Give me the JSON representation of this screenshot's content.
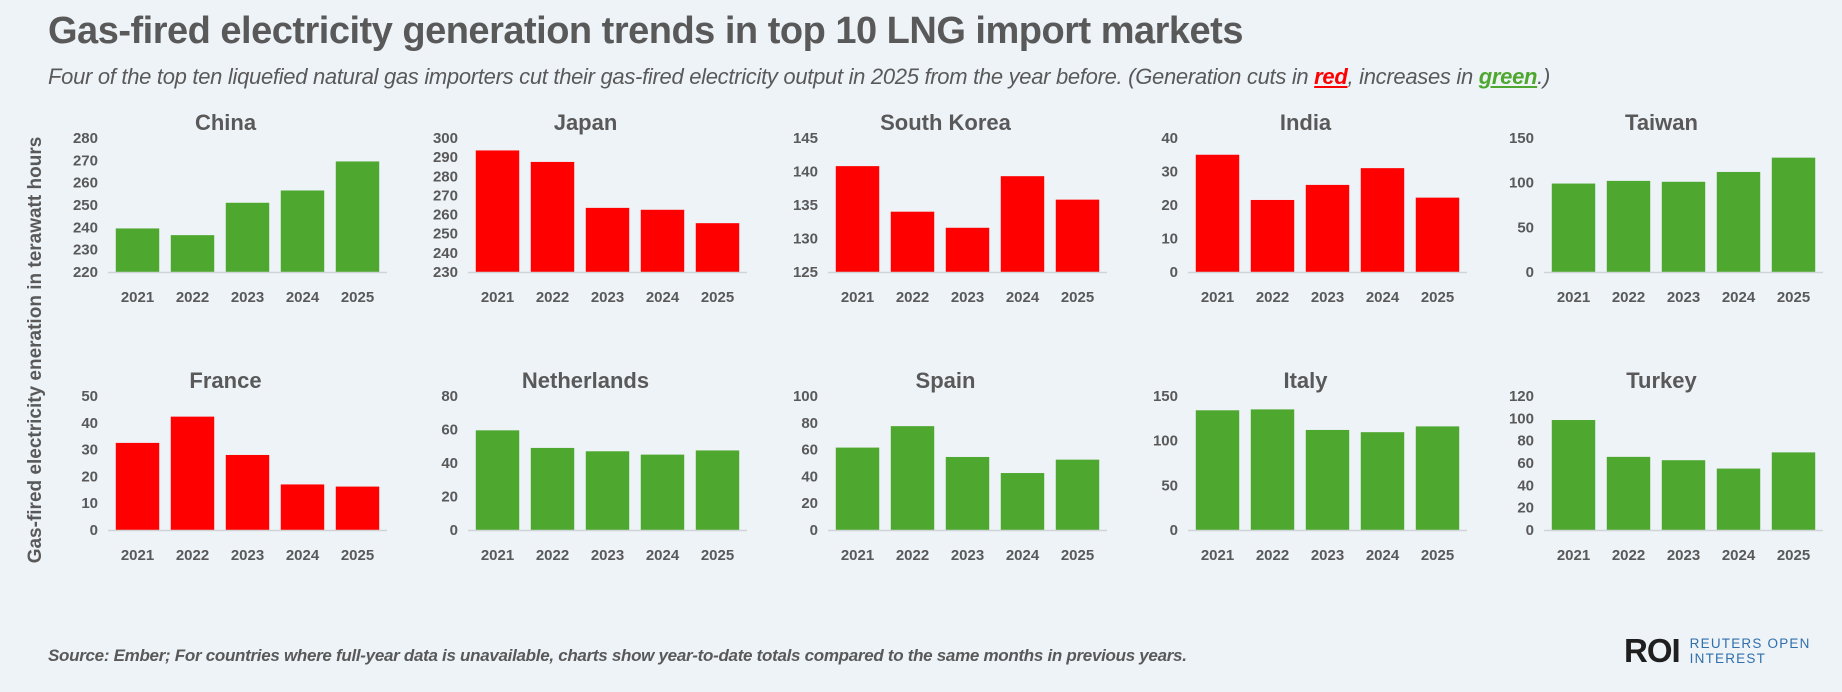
{
  "header": {
    "title": "Gas-fired electricity generation trends in top 10 LNG import markets",
    "subtitle_pre": "Four of the top ten liquefied natural gas importers cut their gas-fired electricity output in 2025 from the year before. (Generation cuts in ",
    "subtitle_red": "red",
    "subtitle_mid": ", increases in ",
    "subtitle_green": "green",
    "subtitle_post": ".)"
  },
  "y_axis_label": "Gas-fired electricity eneration in terawatt hours",
  "footer": {
    "source": "Source:  Ember; For countries where full-year data is unavailable, charts show year-to-date totals compared to the same months in previous years.",
    "logo_mark": "ROI",
    "logo_line1": "REUTERS OPEN",
    "logo_line2": "INTEREST"
  },
  "colors": {
    "cut": "#ff0000",
    "increase": "#4ea72e",
    "text": "#595959",
    "background": "#eef3f8"
  },
  "chart_data": [
    {
      "type": "bar",
      "title": "China",
      "categories": [
        "2021",
        "2022",
        "2023",
        "2024",
        "2025"
      ],
      "values": [
        239.5,
        236.5,
        251,
        256.5,
        269.5
      ],
      "ylim": [
        220,
        280
      ],
      "yticks": [
        220,
        230,
        240,
        250,
        260,
        270,
        280
      ],
      "trend": "increase",
      "ylabel": "Gas-fired electricity eneration in terawatt hours",
      "grid": false
    },
    {
      "type": "bar",
      "title": "Japan",
      "categories": [
        "2021",
        "2022",
        "2023",
        "2024",
        "2025"
      ],
      "values": [
        293.5,
        287.5,
        263.5,
        262.5,
        255.5
      ],
      "ylim": [
        230,
        300
      ],
      "yticks": [
        230,
        240,
        250,
        260,
        270,
        280,
        290,
        300
      ],
      "trend": "cut",
      "grid": false
    },
    {
      "type": "bar",
      "title": "South Korea",
      "categories": [
        "2021",
        "2022",
        "2023",
        "2024",
        "2025"
      ],
      "values": [
        140.8,
        134,
        131.6,
        139.3,
        135.8
      ],
      "ylim": [
        125,
        145
      ],
      "yticks": [
        125,
        130,
        135,
        140,
        145
      ],
      "trend": "cut",
      "grid": false
    },
    {
      "type": "bar",
      "title": "India",
      "categories": [
        "2021",
        "2022",
        "2023",
        "2024",
        "2025"
      ],
      "values": [
        35,
        21.5,
        26,
        31,
        22.2
      ],
      "ylim": [
        0,
        40
      ],
      "yticks": [
        0,
        10,
        20,
        30,
        40
      ],
      "trend": "cut",
      "grid": false
    },
    {
      "type": "bar",
      "title": "Taiwan",
      "categories": [
        "2021",
        "2022",
        "2023",
        "2024",
        "2025"
      ],
      "values": [
        99,
        102,
        101,
        112,
        128
      ],
      "ylim": [
        0,
        150
      ],
      "yticks": [
        0,
        50,
        100,
        150
      ],
      "trend": "increase",
      "grid": false
    },
    {
      "type": "bar",
      "title": "France",
      "categories": [
        "2021",
        "2022",
        "2023",
        "2024",
        "2025"
      ],
      "values": [
        32.5,
        42.3,
        28,
        17,
        16.2
      ],
      "ylim": [
        0,
        50
      ],
      "yticks": [
        0,
        10,
        20,
        30,
        40,
        50
      ],
      "trend": "cut",
      "grid": false
    },
    {
      "type": "bar",
      "title": "Netherlands",
      "categories": [
        "2021",
        "2022",
        "2023",
        "2024",
        "2025"
      ],
      "values": [
        59.5,
        49,
        47,
        45,
        47.5
      ],
      "ylim": [
        0,
        80
      ],
      "yticks": [
        0,
        20,
        40,
        60,
        80
      ],
      "trend": "increase",
      "grid": false
    },
    {
      "type": "bar",
      "title": "Spain",
      "categories": [
        "2021",
        "2022",
        "2023",
        "2024",
        "2025"
      ],
      "values": [
        61.5,
        77.5,
        54.5,
        42.5,
        52.5
      ],
      "ylim": [
        0,
        100
      ],
      "yticks": [
        0,
        20,
        40,
        60,
        80,
        100
      ],
      "trend": "increase",
      "grid": false
    },
    {
      "type": "bar",
      "title": "Italy",
      "categories": [
        "2021",
        "2022",
        "2023",
        "2024",
        "2025"
      ],
      "values": [
        134,
        135,
        112,
        109.5,
        116
      ],
      "ylim": [
        0,
        150
      ],
      "yticks": [
        0,
        50,
        100,
        150
      ],
      "trend": "increase",
      "grid": false
    },
    {
      "type": "bar",
      "title": "Turkey",
      "categories": [
        "2021",
        "2022",
        "2023",
        "2024",
        "2025"
      ],
      "values": [
        98.5,
        65.5,
        62.5,
        55,
        69.5
      ],
      "ylim": [
        0,
        120
      ],
      "yticks": [
        0,
        20,
        40,
        60,
        80,
        100,
        120
      ],
      "trend": "increase",
      "grid": false
    }
  ]
}
